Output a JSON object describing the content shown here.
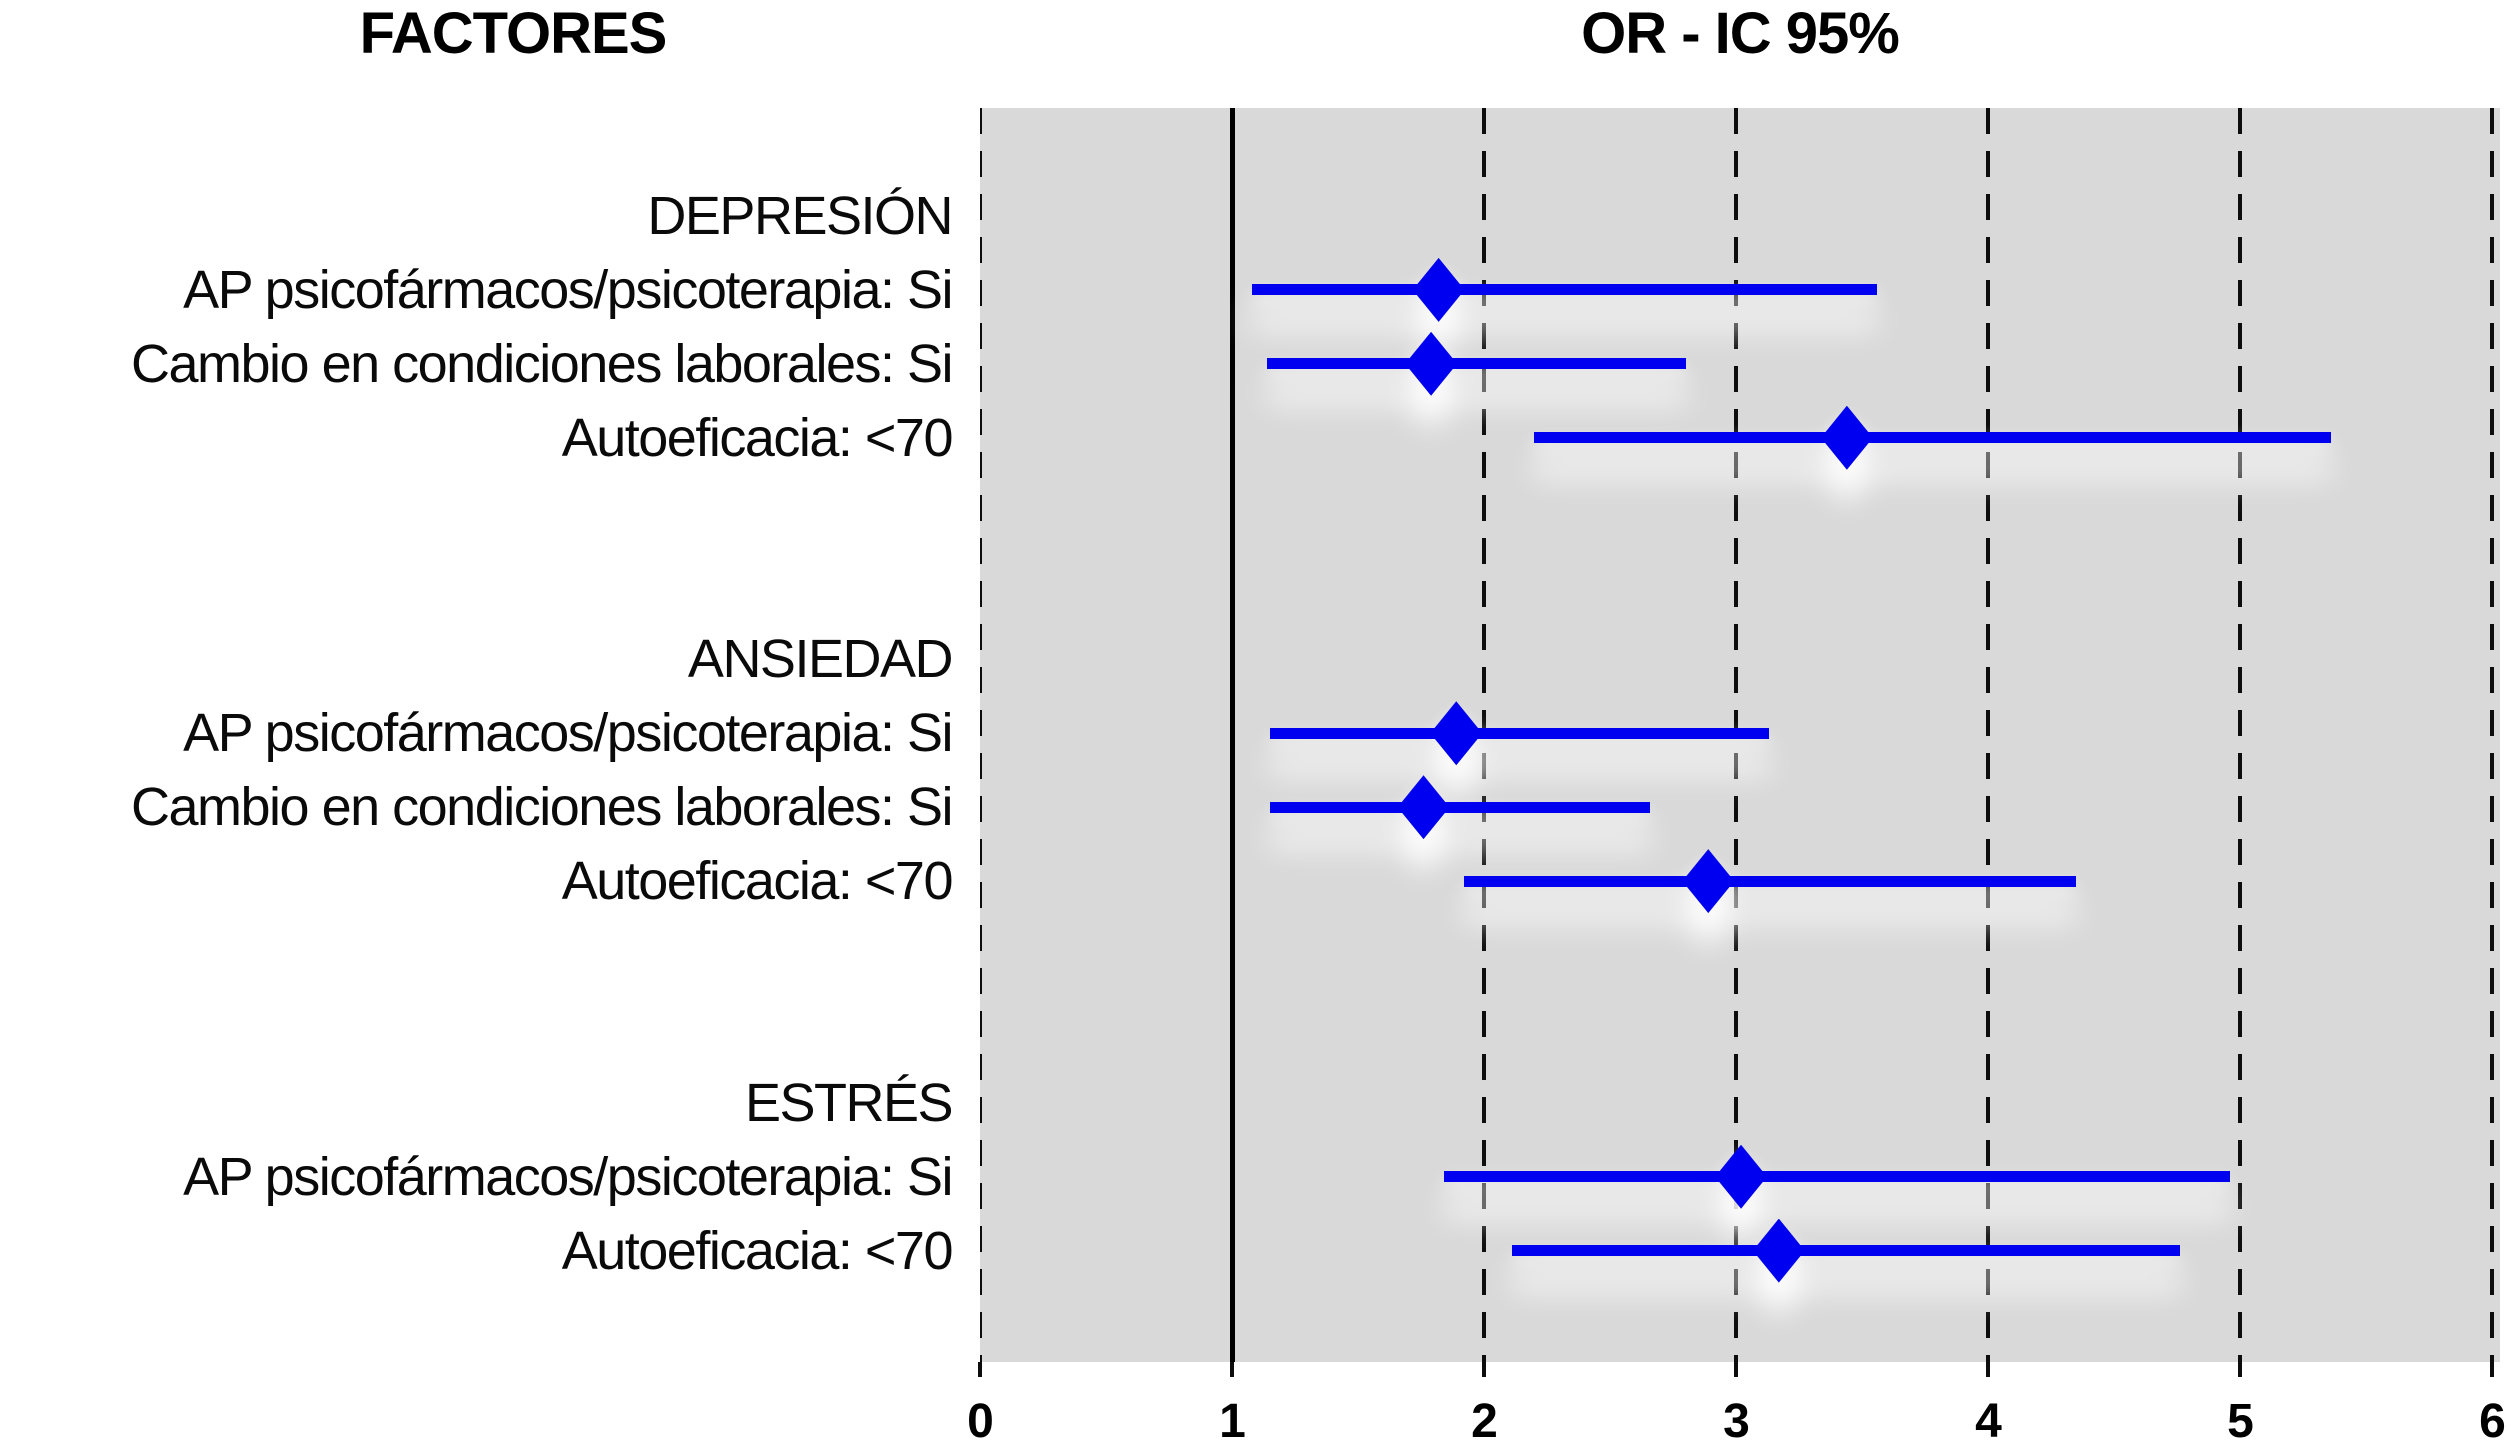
{
  "titles": {
    "left": "FACTORES",
    "right": "OR - IC 95%"
  },
  "colors": {
    "marker_blue": "#0000f0",
    "plot_background": "#d9d9d9",
    "gridline": "#0d0d0d",
    "text": "#000000"
  },
  "chart_data": {
    "type": "scatter",
    "subtype": "forest-plot",
    "factor_header": "FACTORES",
    "or_header": "OR - IC 95%",
    "xlim": [
      0,
      6
    ],
    "x_ticks": [
      0,
      1,
      2,
      3,
      4,
      5,
      6
    ],
    "reference_line": 1,
    "grid": "dashed-vertical",
    "legend_position": "none",
    "groups": [
      {
        "name": "DEPRESIÓN",
        "items": [
          {
            "label": "AP psicofármacos/psicoterapia: Si",
            "or": 1.82,
            "ci_low": 1.08,
            "ci_high": 3.56
          },
          {
            "label": "Cambio en condiciones laborales: Si",
            "or": 1.79,
            "ci_low": 1.14,
            "ci_high": 2.8
          },
          {
            "label": "Autoeficacia: <70",
            "or": 3.44,
            "ci_low": 2.2,
            "ci_high": 5.36
          }
        ]
      },
      {
        "name": "ANSIEDAD",
        "items": [
          {
            "label": "AP psicofármacos/psicoterapia: Si",
            "or": 1.89,
            "ci_low": 1.15,
            "ci_high": 3.13
          },
          {
            "label": "Cambio en condiciones laborales: Si",
            "or": 1.76,
            "ci_low": 1.15,
            "ci_high": 2.66
          },
          {
            "label": "Autoeficacia: <70",
            "or": 2.89,
            "ci_low": 1.92,
            "ci_high": 4.35
          }
        ]
      },
      {
        "name": "ESTRÉS",
        "items": [
          {
            "label": "AP psicofármacos/psicoterapia: Si",
            "or": 3.02,
            "ci_low": 1.84,
            "ci_high": 4.96
          },
          {
            "label": "Autoeficacia: <70",
            "or": 3.17,
            "ci_low": 2.11,
            "ci_high": 4.76
          }
        ]
      }
    ]
  }
}
